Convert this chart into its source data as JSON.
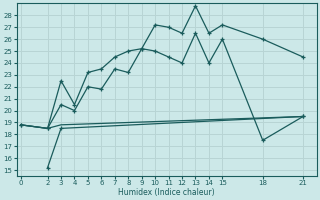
{
  "xlabel": "Humidex (Indice chaleur)",
  "bg_color": "#cce8e8",
  "grid_color": "#b8d4d4",
  "line_color": "#1a5c5c",
  "spine_color": "#1a5c5c",
  "y_ticks": [
    15,
    16,
    17,
    18,
    19,
    20,
    21,
    22,
    23,
    24,
    25,
    26,
    27,
    28
  ],
  "x_ticks": [
    0,
    2,
    3,
    4,
    5,
    6,
    7,
    8,
    9,
    10,
    11,
    12,
    13,
    14,
    15,
    18,
    21
  ],
  "ylim": [
    14.5,
    29.0
  ],
  "xlim": [
    -0.3,
    22.0
  ],
  "line1_x": [
    0,
    2,
    3,
    4,
    5,
    6,
    7,
    8,
    9,
    10,
    11,
    12,
    13,
    14,
    15,
    18,
    21
  ],
  "line1_y": [
    18.8,
    18.5,
    22.5,
    20.5,
    23.2,
    23.5,
    24.5,
    25.0,
    25.2,
    27.2,
    27.0,
    26.5,
    28.8,
    26.5,
    27.2,
    26.0,
    24.5
  ],
  "line2_x": [
    0,
    2,
    3,
    4,
    5,
    6,
    7,
    8,
    9,
    10,
    11,
    12,
    13,
    14,
    15,
    18,
    21
  ],
  "line2_y": [
    18.8,
    18.5,
    20.5,
    20.0,
    22.0,
    21.8,
    23.5,
    23.2,
    25.2,
    25.0,
    24.5,
    24.0,
    26.5,
    24.0,
    26.0,
    17.5,
    19.5
  ],
  "line3_x": [
    0,
    2,
    3,
    21
  ],
  "line3_y": [
    18.8,
    18.5,
    18.8,
    19.5
  ],
  "line4_x": [
    2,
    3,
    21
  ],
  "line4_y": [
    15.2,
    18.5,
    19.5
  ]
}
